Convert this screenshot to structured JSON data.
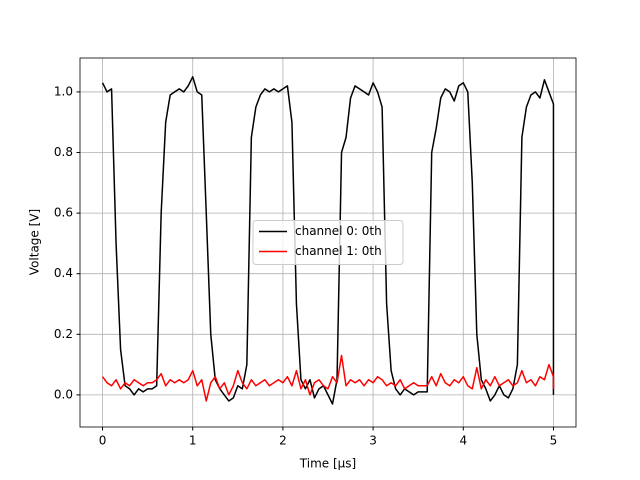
{
  "chart_data": {
    "type": "line",
    "xlabel": "Time [μs]",
    "ylabel": "Voltage [V]",
    "x": [
      0,
      0.05,
      0.1,
      0.15,
      0.2,
      0.25,
      0.3,
      0.35,
      0.4,
      0.45,
      0.5,
      0.55,
      0.6,
      0.65,
      0.7,
      0.75,
      0.8,
      0.85,
      0.9,
      0.95,
      1.0,
      1.05,
      1.1,
      1.15,
      1.2,
      1.25,
      1.3,
      1.35,
      1.4,
      1.45,
      1.5,
      1.55,
      1.6,
      1.65,
      1.7,
      1.75,
      1.8,
      1.85,
      1.9,
      1.95,
      2.0,
      2.05,
      2.1,
      2.15,
      2.2,
      2.25,
      2.3,
      2.35,
      2.4,
      2.45,
      2.5,
      2.55,
      2.6,
      2.65,
      2.7,
      2.75,
      2.8,
      2.85,
      2.9,
      2.95,
      3.0,
      3.05,
      3.1,
      3.15,
      3.2,
      3.25,
      3.3,
      3.35,
      3.4,
      3.45,
      3.5,
      3.55,
      3.6,
      3.65,
      3.7,
      3.75,
      3.8,
      3.85,
      3.9,
      3.95,
      4.0,
      4.05,
      4.1,
      4.15,
      4.2,
      4.25,
      4.3,
      4.35,
      4.4,
      4.45,
      4.5,
      4.55,
      4.6,
      4.65,
      4.7,
      4.75,
      4.8,
      4.85,
      4.9,
      4.95,
      5.0,
      5.0
    ],
    "series": [
      {
        "name": "channel 0: 0th",
        "color": "#000000",
        "values": [
          1.03,
          1.0,
          1.01,
          0.5,
          0.15,
          0.03,
          0.02,
          0.0,
          0.02,
          0.01,
          0.02,
          0.02,
          0.03,
          0.6,
          0.9,
          0.99,
          1.0,
          1.01,
          1.0,
          1.02,
          1.05,
          1.0,
          0.99,
          0.6,
          0.2,
          0.05,
          0.02,
          0.0,
          -0.02,
          -0.01,
          0.03,
          0.02,
          0.1,
          0.85,
          0.95,
          0.99,
          1.01,
          1.0,
          1.01,
          1.0,
          1.01,
          1.02,
          0.9,
          0.3,
          0.05,
          0.02,
          0.05,
          -0.01,
          0.02,
          0.03,
          0.0,
          -0.03,
          0.05,
          0.8,
          0.85,
          0.98,
          1.02,
          1.01,
          1.0,
          0.99,
          1.03,
          1.0,
          0.95,
          0.3,
          0.08,
          0.02,
          0.0,
          0.02,
          0.01,
          0.0,
          0.01,
          0.01,
          0.01,
          0.8,
          0.88,
          0.98,
          1.01,
          1.0,
          0.97,
          1.02,
          1.03,
          1.0,
          0.7,
          0.2,
          0.05,
          0.02,
          -0.02,
          0.0,
          0.03,
          0.0,
          -0.01,
          0.02,
          0.1,
          0.85,
          0.95,
          0.99,
          1.0,
          0.98,
          1.04,
          1.0,
          0.96,
          0.0
        ]
      },
      {
        "name": "channel 1: 0th",
        "color": "#ff0000",
        "values": [
          0.06,
          0.04,
          0.03,
          0.05,
          0.02,
          0.04,
          0.03,
          0.05,
          0.04,
          0.03,
          0.04,
          0.04,
          0.05,
          0.07,
          0.03,
          0.05,
          0.04,
          0.05,
          0.04,
          0.05,
          0.08,
          0.03,
          0.05,
          -0.02,
          0.04,
          0.06,
          0.02,
          0.04,
          0.0,
          0.03,
          0.08,
          0.04,
          0.02,
          0.05,
          0.03,
          0.04,
          0.05,
          0.03,
          0.04,
          0.05,
          0.04,
          0.06,
          0.03,
          0.08,
          0.02,
          0.05,
          0.0,
          0.04,
          0.05,
          0.03,
          0.02,
          0.06,
          0.04,
          0.13,
          0.03,
          0.05,
          0.04,
          0.05,
          0.03,
          0.05,
          0.04,
          0.06,
          0.05,
          0.03,
          0.04,
          0.03,
          0.05,
          0.02,
          0.03,
          0.04,
          0.03,
          0.03,
          0.03,
          0.06,
          0.03,
          0.07,
          0.04,
          0.03,
          0.05,
          0.04,
          0.06,
          0.03,
          0.02,
          0.09,
          0.02,
          0.05,
          0.03,
          0.06,
          0.03,
          0.04,
          0.05,
          0.03,
          0.04,
          0.08,
          0.04,
          0.05,
          0.03,
          0.06,
          0.05,
          0.1,
          0.06,
          0.02
        ]
      }
    ],
    "xlim": [
      -0.25,
      5.25
    ],
    "ylim": [
      -0.106,
      1.112
    ],
    "xticks": [
      0,
      1,
      2,
      3,
      4,
      5
    ],
    "yticks": [
      {
        "value": 0,
        "label": "0.0"
      },
      {
        "value": 0.2,
        "label": "0.2"
      },
      {
        "value": 0.4,
        "label": "0.4"
      },
      {
        "value": 0.6,
        "label": "0.6"
      },
      {
        "value": 0.8,
        "label": "0.8"
      },
      {
        "value": 1,
        "label": "1.0"
      }
    ],
    "grid": true,
    "legend": "center"
  }
}
